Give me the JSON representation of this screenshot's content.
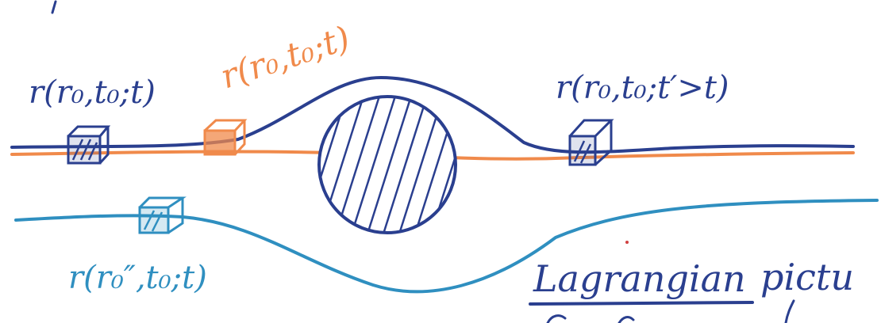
{
  "colors": {
    "navy": "#2a3f8f",
    "orange": "#f08a4b",
    "teal": "#2f8fc0",
    "ink": "#2a3f8f",
    "paper": "#ffffff"
  },
  "labels": {
    "navy_start": "r(r₀,t₀;t)",
    "orange_mid": "r(r₀,t₀;t)",
    "navy_end": "r(r₀,t₀;t′>t)",
    "teal_start": "r(r₀″,t₀;t)",
    "caption_main": "Lagrangian",
    "caption_tail": "pictu"
  }
}
